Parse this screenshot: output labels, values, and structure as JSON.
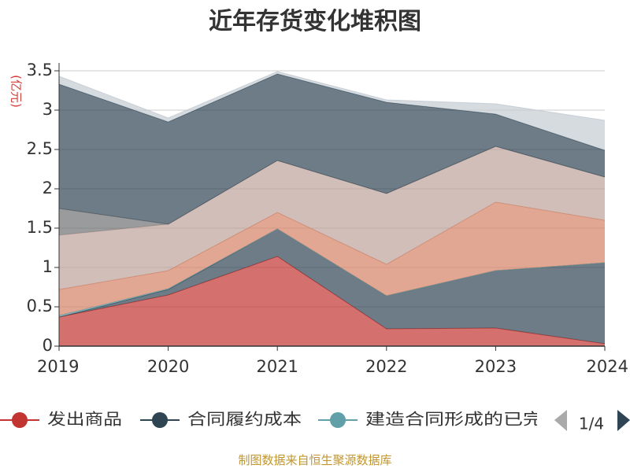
{
  "chart_data": {
    "type": "area",
    "title": "近年存货变化堆积图",
    "unit_label": "(亿元)",
    "x": [
      "2019",
      "2020",
      "2021",
      "2022",
      "2023",
      "2024"
    ],
    "ylim": [
      0,
      3.5
    ],
    "yticks": [
      "0",
      "0.5",
      "1",
      "1.5",
      "2",
      "2.5",
      "3",
      "3.5"
    ],
    "stacked": true,
    "grid": true,
    "series": [
      {
        "name": "发出商品",
        "color": "#c23531",
        "values": [
          0.37,
          0.65,
          1.14,
          0.22,
          0.23,
          0.03
        ]
      },
      {
        "name": "合同履约成本",
        "color": "#2f4554",
        "values": [
          0.0,
          0.07,
          0.35,
          0.42,
          0.73,
          1.03
        ]
      },
      {
        "name": "建造合同形成的已完工未结算资产",
        "color": "#61a0a8",
        "values": [
          0.02,
          0.01,
          0.0,
          0.0,
          0.0,
          0.0
        ]
      },
      {
        "color": "#d48265",
        "values": [
          0.33,
          0.23,
          0.21,
          0.4,
          0.87,
          0.54
        ]
      },
      {
        "color": "#bda29a",
        "values": [
          0.69,
          0.59,
          0.66,
          0.9,
          0.71,
          0.55
        ]
      },
      {
        "color": "#6e7074",
        "values": [
          0.34,
          0.0,
          0.0,
          0.0,
          0.0,
          0.0
        ]
      },
      {
        "color": "#2f4554",
        "values": [
          1.58,
          1.3,
          1.1,
          1.16,
          0.41,
          0.34
        ]
      },
      {
        "color": "#c4ccd3",
        "values": [
          0.1,
          0.05,
          0.03,
          0.03,
          0.13,
          0.38
        ]
      }
    ],
    "legend": {
      "position": "bottom",
      "visible_items": [
        {
          "label": "发出商品",
          "color": "#c23531"
        },
        {
          "label": "合同履约成本",
          "color": "#2f4554"
        },
        {
          "label": "建造合同形成的已完",
          "color": "#61a0a8"
        }
      ],
      "page": "1/4"
    },
    "source": "制图数据来自恒生聚源数据库"
  }
}
